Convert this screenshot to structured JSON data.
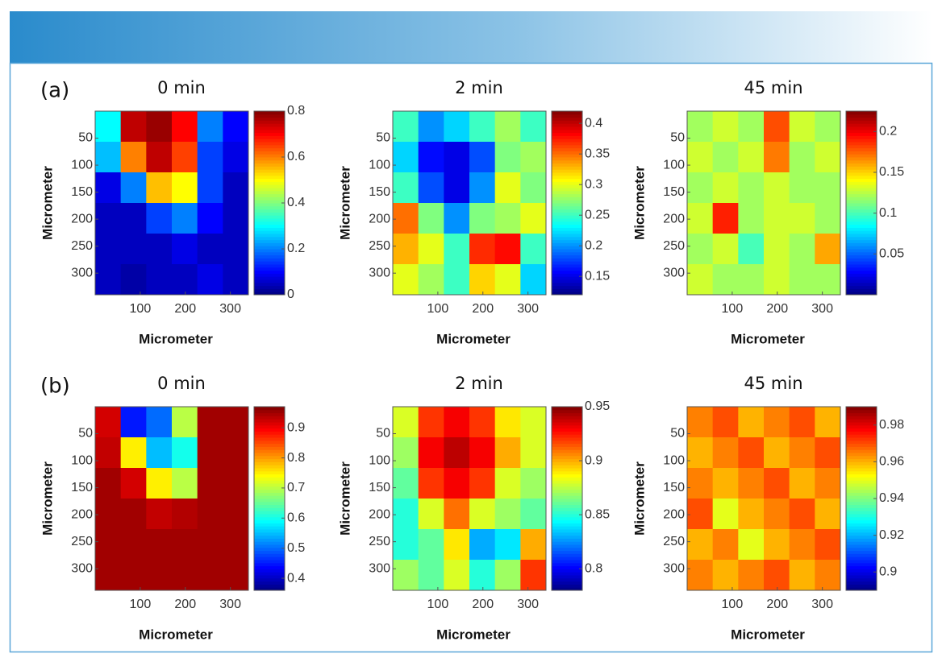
{
  "chart_data": [
    {
      "type": "heatmap",
      "panel": "(a)",
      "title": "0 min",
      "xlabel": "Micrometer",
      "ylabel": "Micrometer",
      "colormap": "jet",
      "xlim": [
        0,
        340
      ],
      "ylim": [
        0,
        340
      ],
      "y_reversed": true,
      "xticks": [
        100,
        200,
        300
      ],
      "yticks": [
        50,
        100,
        150,
        200,
        250,
        300
      ],
      "clim": [
        0,
        0.8
      ],
      "cticks": [
        0,
        0.2,
        0.4,
        0.6,
        0.8
      ],
      "values": [
        [
          0.3,
          0.75,
          0.78,
          0.7,
          0.2,
          0.1
        ],
        [
          0.25,
          0.6,
          0.75,
          0.65,
          0.15,
          0.08
        ],
        [
          0.08,
          0.2,
          0.55,
          0.5,
          0.15,
          0.05
        ],
        [
          0.05,
          0.05,
          0.15,
          0.2,
          0.1,
          0.05
        ],
        [
          0.05,
          0.05,
          0.05,
          0.08,
          0.05,
          0.05
        ],
        [
          0.05,
          0.03,
          0.05,
          0.05,
          0.08,
          0.05
        ]
      ]
    },
    {
      "type": "heatmap",
      "title": "2 min",
      "xlabel": "Micrometer",
      "ylabel": "Micrometer",
      "colormap": "jet",
      "xlim": [
        0,
        340
      ],
      "ylim": [
        0,
        340
      ],
      "y_reversed": true,
      "xticks": [
        100,
        200,
        300
      ],
      "yticks": [
        50,
        100,
        150,
        200,
        250,
        300
      ],
      "clim": [
        0.12,
        0.42
      ],
      "cticks": [
        0.15,
        0.2,
        0.25,
        0.3,
        0.35,
        0.4
      ],
      "values": [
        [
          0.25,
          0.2,
          0.22,
          0.25,
          0.28,
          0.25
        ],
        [
          0.22,
          0.16,
          0.15,
          0.18,
          0.27,
          0.28
        ],
        [
          0.25,
          0.18,
          0.15,
          0.2,
          0.3,
          0.27
        ],
        [
          0.35,
          0.27,
          0.2,
          0.27,
          0.28,
          0.3
        ],
        [
          0.33,
          0.3,
          0.25,
          0.37,
          0.38,
          0.25
        ],
        [
          0.3,
          0.28,
          0.25,
          0.32,
          0.3,
          0.22
        ]
      ]
    },
    {
      "type": "heatmap",
      "title": "45 min",
      "xlabel": "Micrometer",
      "ylabel": "Micrometer",
      "colormap": "jet",
      "xlim": [
        0,
        340
      ],
      "ylim": [
        0,
        340
      ],
      "y_reversed": true,
      "xticks": [
        100,
        200,
        300
      ],
      "yticks": [
        50,
        100,
        150,
        200,
        250,
        300
      ],
      "clim": [
        0,
        0.225
      ],
      "cticks": [
        0.05,
        0.1,
        0.15,
        0.2
      ],
      "values": [
        [
          0.12,
          0.13,
          0.12,
          0.18,
          0.13,
          0.12
        ],
        [
          0.13,
          0.12,
          0.13,
          0.17,
          0.12,
          0.13
        ],
        [
          0.12,
          0.13,
          0.12,
          0.13,
          0.12,
          0.12
        ],
        [
          0.13,
          0.19,
          0.12,
          0.13,
          0.13,
          0.12
        ],
        [
          0.12,
          0.13,
          0.1,
          0.13,
          0.12,
          0.16
        ],
        [
          0.13,
          0.12,
          0.12,
          0.13,
          0.12,
          0.12
        ]
      ]
    },
    {
      "type": "heatmap",
      "panel": "(b)",
      "title": "0 min",
      "xlabel": "Micrometer",
      "ylabel": "Micrometer",
      "colormap": "jet",
      "xlim": [
        0,
        340
      ],
      "ylim": [
        0,
        340
      ],
      "y_reversed": true,
      "xticks": [
        100,
        200,
        300
      ],
      "yticks": [
        50,
        100,
        150,
        200,
        250,
        300
      ],
      "clim": [
        0.36,
        0.97
      ],
      "cticks": [
        0.4,
        0.5,
        0.6,
        0.7,
        0.8,
        0.9
      ],
      "values": [
        [
          0.92,
          0.45,
          0.5,
          0.7,
          0.95,
          0.95
        ],
        [
          0.93,
          0.75,
          0.55,
          0.6,
          0.95,
          0.95
        ],
        [
          0.95,
          0.92,
          0.75,
          0.7,
          0.95,
          0.95
        ],
        [
          0.95,
          0.95,
          0.93,
          0.94,
          0.95,
          0.95
        ],
        [
          0.95,
          0.95,
          0.95,
          0.95,
          0.95,
          0.95
        ],
        [
          0.95,
          0.95,
          0.95,
          0.95,
          0.95,
          0.95
        ]
      ]
    },
    {
      "type": "heatmap",
      "title": "2 min",
      "xlabel": "Micrometer",
      "ylabel": "Micrometer",
      "colormap": "jet",
      "xlim": [
        0,
        340
      ],
      "ylim": [
        0,
        340
      ],
      "y_reversed": true,
      "xticks": [
        100,
        200,
        300
      ],
      "yticks": [
        50,
        100,
        150,
        200,
        250,
        300
      ],
      "clim": [
        0.78,
        0.95
      ],
      "cticks": [
        0.8,
        0.85,
        0.9,
        0.95
      ],
      "values": [
        [
          0.88,
          0.92,
          0.93,
          0.92,
          0.89,
          0.88
        ],
        [
          0.87,
          0.93,
          0.94,
          0.93,
          0.9,
          0.88
        ],
        [
          0.86,
          0.92,
          0.93,
          0.92,
          0.88,
          0.87
        ],
        [
          0.85,
          0.88,
          0.91,
          0.88,
          0.87,
          0.86
        ],
        [
          0.85,
          0.86,
          0.89,
          0.83,
          0.84,
          0.9
        ],
        [
          0.87,
          0.86,
          0.88,
          0.85,
          0.87,
          0.92
        ]
      ]
    },
    {
      "type": "heatmap",
      "title": "45 min",
      "xlabel": "Micrometer",
      "ylabel": "Micrometer",
      "colormap": "jet",
      "xlim": [
        0,
        340
      ],
      "ylim": [
        0,
        340
      ],
      "y_reversed": true,
      "xticks": [
        100,
        200,
        300
      ],
      "yticks": [
        50,
        100,
        150,
        200,
        250,
        300
      ],
      "clim": [
        0.89,
        0.99
      ],
      "cticks": [
        0.9,
        0.92,
        0.94,
        0.96,
        0.98
      ],
      "values": [
        [
          0.965,
          0.97,
          0.96,
          0.965,
          0.97,
          0.96
        ],
        [
          0.96,
          0.965,
          0.97,
          0.96,
          0.965,
          0.97
        ],
        [
          0.965,
          0.96,
          0.965,
          0.97,
          0.96,
          0.965
        ],
        [
          0.97,
          0.95,
          0.96,
          0.965,
          0.97,
          0.96
        ],
        [
          0.96,
          0.965,
          0.95,
          0.96,
          0.965,
          0.97
        ],
        [
          0.965,
          0.96,
          0.965,
          0.97,
          0.96,
          0.965
        ]
      ]
    }
  ]
}
